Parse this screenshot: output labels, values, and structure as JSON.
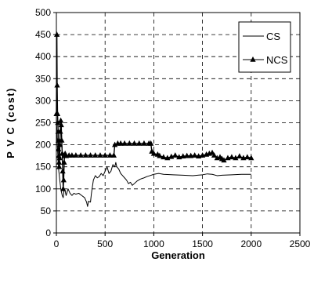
{
  "chart_data": {
    "type": "line",
    "title": "",
    "xlabel": "Generation",
    "ylabel": "P V C (cost)",
    "xlim": [
      0,
      2500
    ],
    "ylim": [
      0,
      500
    ],
    "x_ticks": [
      0,
      500,
      1000,
      1500,
      2000,
      2500
    ],
    "y_ticks": [
      0,
      50,
      100,
      150,
      200,
      250,
      300,
      350,
      400,
      450,
      500
    ],
    "grid": "dashed",
    "legend_position": "top-right",
    "series": [
      {
        "name": "CS",
        "marker": "none",
        "color": "#000000",
        "points": [
          [
            0,
            270
          ],
          [
            5,
            230
          ],
          [
            10,
            200
          ],
          [
            15,
            175
          ],
          [
            20,
            155
          ],
          [
            25,
            140
          ],
          [
            30,
            130
          ],
          [
            35,
            120
          ],
          [
            40,
            110
          ],
          [
            45,
            100
          ],
          [
            50,
            95
          ],
          [
            55,
            90
          ],
          [
            60,
            85
          ],
          [
            70,
            80
          ],
          [
            80,
            100
          ],
          [
            90,
            95
          ],
          [
            100,
            85
          ],
          [
            120,
            100
          ],
          [
            140,
            90
          ],
          [
            160,
            85
          ],
          [
            180,
            90
          ],
          [
            200,
            88
          ],
          [
            230,
            90
          ],
          [
            260,
            85
          ],
          [
            290,
            80
          ],
          [
            310,
            70
          ],
          [
            320,
            60
          ],
          [
            330,
            72
          ],
          [
            350,
            70
          ],
          [
            360,
            90
          ],
          [
            380,
            120
          ],
          [
            400,
            130
          ],
          [
            420,
            125
          ],
          [
            440,
            128
          ],
          [
            460,
            135
          ],
          [
            480,
            130
          ],
          [
            500,
            140
          ],
          [
            520,
            150
          ],
          [
            540,
            135
          ],
          [
            560,
            140
          ],
          [
            580,
            155
          ],
          [
            600,
            150
          ],
          [
            610,
            160
          ],
          [
            620,
            150
          ],
          [
            640,
            145
          ],
          [
            660,
            135
          ],
          [
            680,
            130
          ],
          [
            700,
            125
          ],
          [
            720,
            120
          ],
          [
            740,
            112
          ],
          [
            760,
            115
          ],
          [
            780,
            108
          ],
          [
            800,
            112
          ],
          [
            830,
            118
          ],
          [
            860,
            122
          ],
          [
            900,
            125
          ],
          [
            930,
            128
          ],
          [
            960,
            130
          ],
          [
            1000,
            133
          ],
          [
            1050,
            135
          ],
          [
            1100,
            133
          ],
          [
            1200,
            132
          ],
          [
            1300,
            131
          ],
          [
            1400,
            130
          ],
          [
            1500,
            132
          ],
          [
            1550,
            134
          ],
          [
            1600,
            133
          ],
          [
            1650,
            130
          ],
          [
            1700,
            131
          ],
          [
            1800,
            132
          ],
          [
            1900,
            133
          ],
          [
            2000,
            133
          ]
        ]
      },
      {
        "name": "NCS",
        "marker": "triangle",
        "color": "#000000",
        "points": [
          [
            0,
            270
          ],
          [
            5,
            450
          ],
          [
            8,
            335
          ],
          [
            12,
            270
          ],
          [
            15,
            250
          ],
          [
            18,
            230
          ],
          [
            20,
            210
          ],
          [
            22,
            190
          ],
          [
            25,
            175
          ],
          [
            28,
            160
          ],
          [
            30,
            150
          ],
          [
            33,
            170
          ],
          [
            36,
            200
          ],
          [
            40,
            230
          ],
          [
            45,
            255
          ],
          [
            50,
            245
          ],
          [
            55,
            210
          ],
          [
            60,
            180
          ],
          [
            65,
            140
          ],
          [
            70,
            100
          ],
          [
            75,
            120
          ],
          [
            80,
            160
          ],
          [
            85,
            175
          ],
          [
            90,
            180
          ],
          [
            100,
            175
          ],
          [
            130,
            176
          ],
          [
            160,
            176
          ],
          [
            200,
            176
          ],
          [
            250,
            176
          ],
          [
            300,
            176
          ],
          [
            350,
            176
          ],
          [
            400,
            176
          ],
          [
            450,
            176
          ],
          [
            500,
            176
          ],
          [
            550,
            176
          ],
          [
            590,
            176
          ],
          [
            600,
            200
          ],
          [
            630,
            203
          ],
          [
            660,
            203
          ],
          [
            700,
            203
          ],
          [
            750,
            203
          ],
          [
            800,
            203
          ],
          [
            850,
            203
          ],
          [
            900,
            203
          ],
          [
            950,
            203
          ],
          [
            970,
            203
          ],
          [
            980,
            185
          ],
          [
            1000,
            180
          ],
          [
            1040,
            178
          ],
          [
            1060,
            175
          ],
          [
            1100,
            172
          ],
          [
            1140,
            170
          ],
          [
            1180,
            173
          ],
          [
            1220,
            176
          ],
          [
            1260,
            172
          ],
          [
            1300,
            174
          ],
          [
            1340,
            175
          ],
          [
            1380,
            175
          ],
          [
            1420,
            176
          ],
          [
            1460,
            174
          ],
          [
            1500,
            176
          ],
          [
            1540,
            178
          ],
          [
            1570,
            180
          ],
          [
            1600,
            182
          ],
          [
            1620,
            176
          ],
          [
            1650,
            170
          ],
          [
            1680,
            172
          ],
          [
            1700,
            168
          ],
          [
            1720,
            165
          ],
          [
            1760,
            170
          ],
          [
            1800,
            172
          ],
          [
            1840,
            170
          ],
          [
            1880,
            174
          ],
          [
            1920,
            170
          ],
          [
            1960,
            172
          ],
          [
            2000,
            170
          ]
        ]
      }
    ]
  }
}
